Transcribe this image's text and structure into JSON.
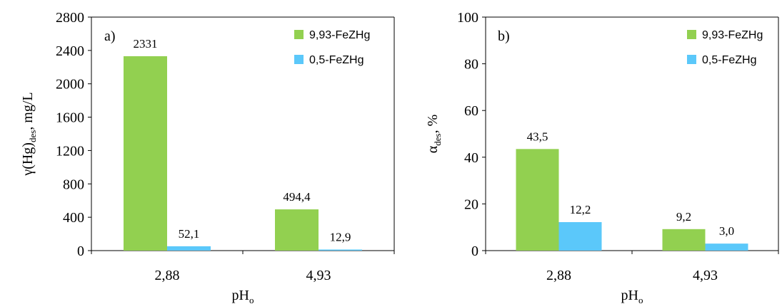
{
  "colors": {
    "green": "#92D050",
    "blue": "#5BC8FA"
  },
  "chart_data": [
    {
      "type": "bar",
      "panel_label": "a)",
      "categories": [
        "2,88",
        "4,93"
      ],
      "series": [
        {
          "name": "9,93-FeZHg",
          "values": [
            2331,
            494.4
          ],
          "labels": [
            "2331",
            "494,4"
          ]
        },
        {
          "name": "0,5-FeZHg",
          "values": [
            52.1,
            12.9
          ],
          "labels": [
            "52,1",
            "12,9"
          ]
        }
      ],
      "xlabel": "pHo",
      "ylabel": "γ(Hg)des, mg/L",
      "ylim": [
        0,
        2800
      ],
      "yticks": [
        0,
        400,
        800,
        1200,
        1600,
        2000,
        2400,
        2800
      ],
      "ytick_labels": [
        "0",
        "400",
        "800",
        "1200",
        "1600",
        "2000",
        "2400",
        "2800"
      ],
      "grid": false,
      "legend": "top-right"
    },
    {
      "type": "bar",
      "panel_label": "b)",
      "categories": [
        "2,88",
        "4,93"
      ],
      "series": [
        {
          "name": "9,93-FeZHg",
          "values": [
            43.5,
            9.2
          ],
          "labels": [
            "43,5",
            "9,2"
          ]
        },
        {
          "name": "0,5-FeZHg",
          "values": [
            12.2,
            3.0
          ],
          "labels": [
            "12,2",
            "3,0"
          ]
        }
      ],
      "xlabel": "pHo",
      "ylabel": "αdes, %",
      "ylim": [
        0,
        100
      ],
      "yticks": [
        0,
        20,
        40,
        60,
        80,
        100
      ],
      "ytick_labels": [
        "0",
        "20",
        "40",
        "60",
        "80",
        "100"
      ],
      "grid": false,
      "legend": "top-right"
    }
  ]
}
